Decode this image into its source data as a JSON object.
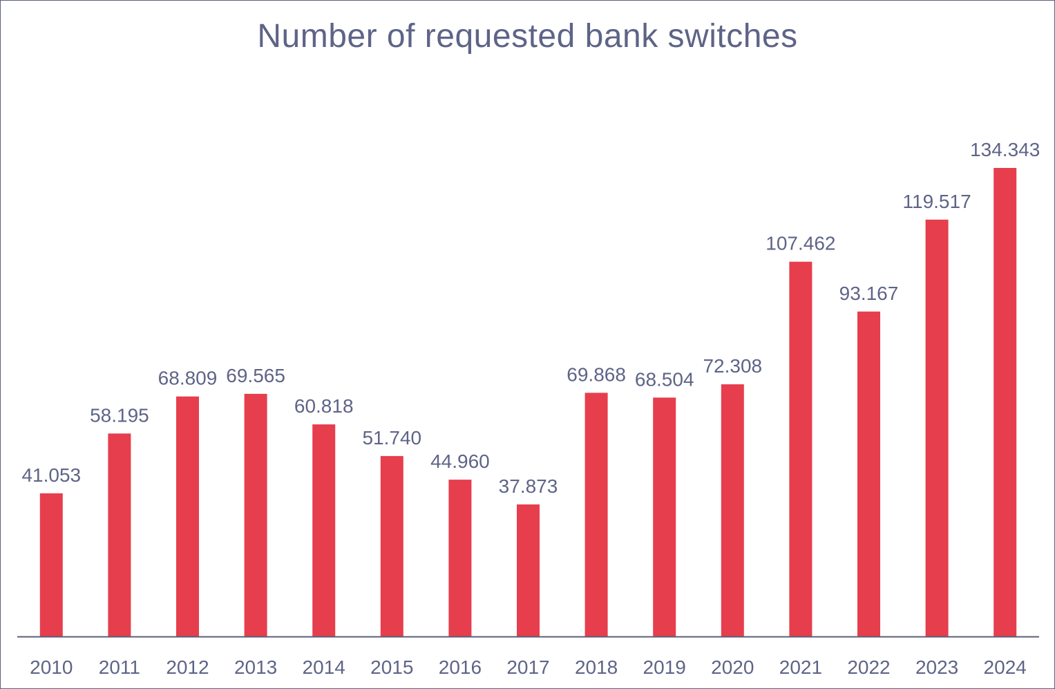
{
  "colors": {
    "bar": "#e63e4d",
    "text": "#5e6487",
    "axis": "#5b5f7a",
    "border": "#5b5f7a",
    "background": "#ffffff"
  },
  "chart_data": {
    "type": "bar",
    "title": "Number of requested bank switches",
    "xlabel": "",
    "ylabel": "",
    "categories": [
      "2010",
      "2011",
      "2012",
      "2013",
      "2014",
      "2015",
      "2016",
      "2017",
      "2018",
      "2019",
      "2020",
      "2021",
      "2022",
      "2023",
      "2024"
    ],
    "values": [
      41053,
      58195,
      68809,
      69565,
      60818,
      51740,
      44960,
      37873,
      69868,
      68504,
      72308,
      107462,
      93167,
      119517,
      134343
    ],
    "value_labels": [
      "41.053",
      "58.195",
      "68.809",
      "69.565",
      "60.818",
      "51.740",
      "44.960",
      "37.873",
      "69.868",
      "68.504",
      "72.308",
      "107.462",
      "93.167",
      "119.517",
      "134.343"
    ],
    "ylim": [
      0,
      134343
    ],
    "grid": false,
    "legend": "none"
  }
}
